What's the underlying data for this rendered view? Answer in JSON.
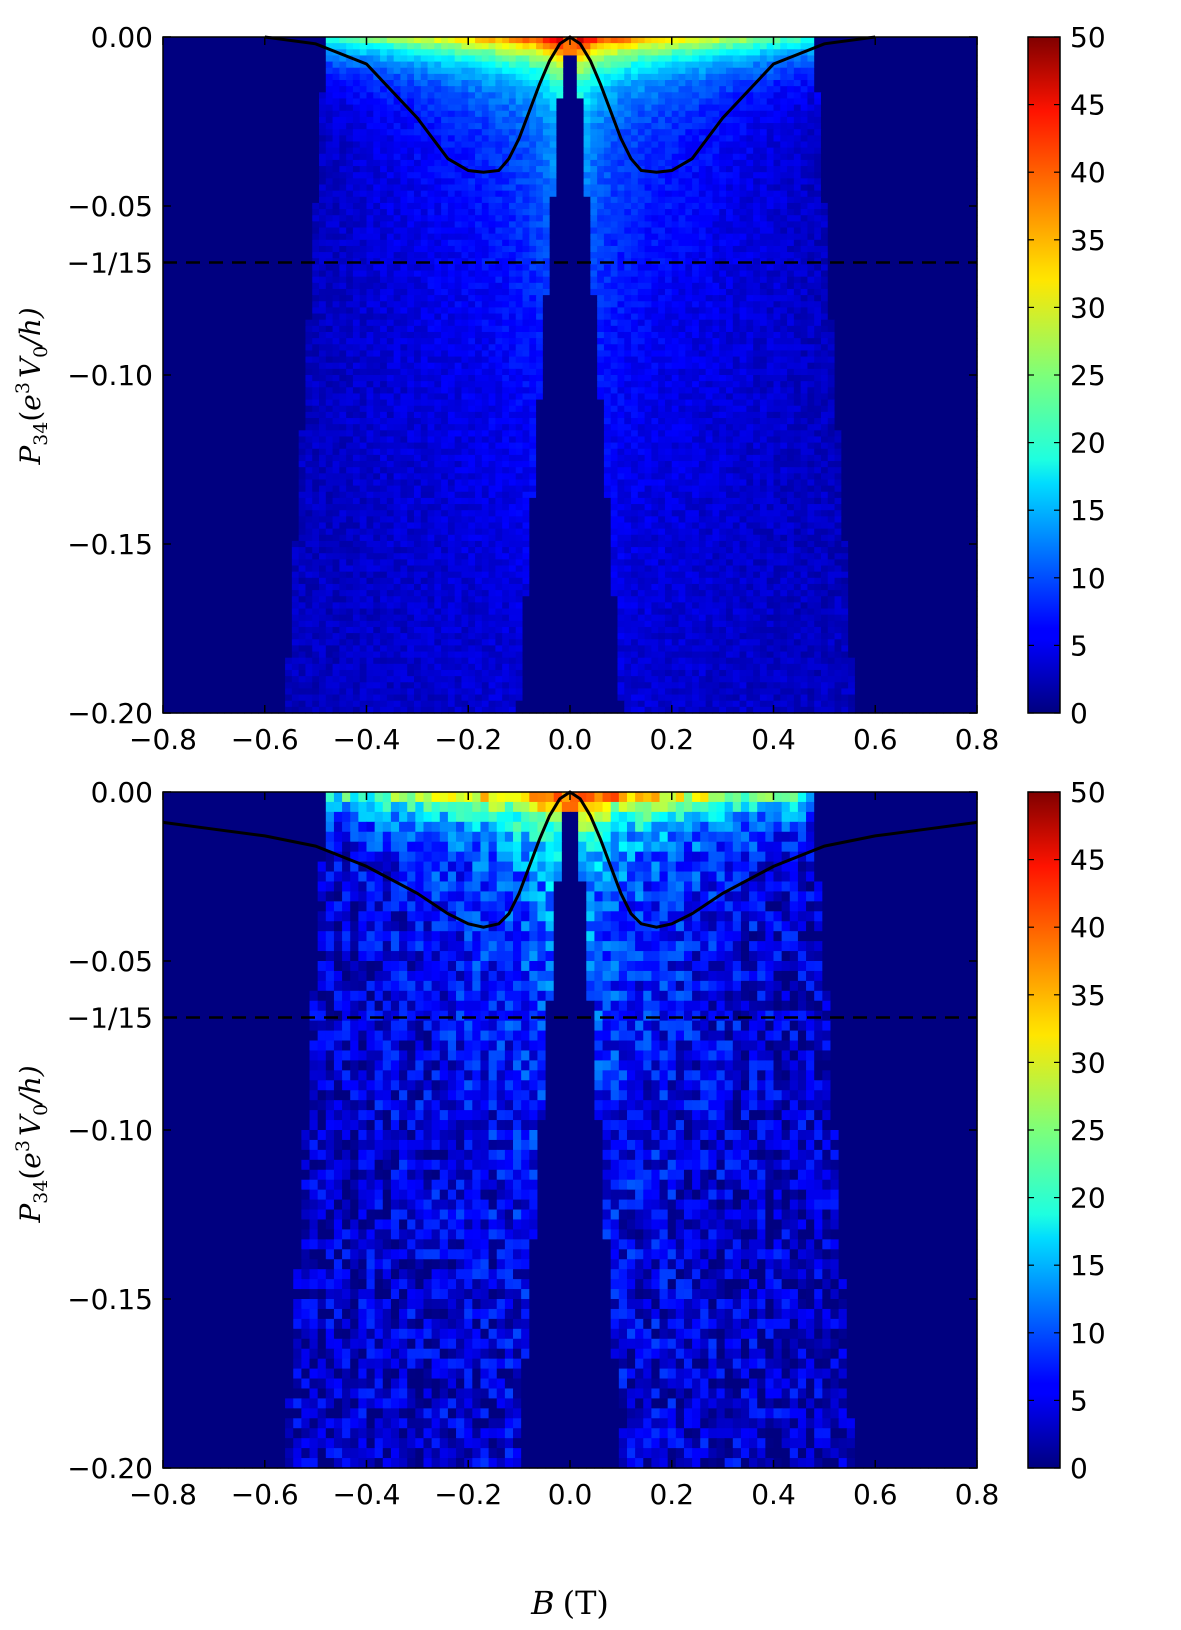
{
  "chart_data": [
    {
      "type": "heatmap",
      "xlabel": "",
      "ylabel_main": "P",
      "ylabel_sub": "34",
      "ylabel_paren_open": "(",
      "ylabel_e": "e",
      "ylabel_e_exp": "3",
      "ylabel_V": "V",
      "ylabel_V_sub": "0",
      "ylabel_tail": "/h)",
      "xlim": [
        -0.8,
        0.8
      ],
      "ylim": [
        -0.2,
        0.0
      ],
      "xticks": [
        -0.8,
        -0.6,
        -0.4,
        -0.2,
        0.0,
        0.2,
        0.4,
        0.6,
        0.8
      ],
      "xtick_labels": [
        "−0.8",
        "−0.6",
        "−0.4",
        "−0.2",
        "0.0",
        "0.2",
        "0.4",
        "0.6",
        "0.8"
      ],
      "yticks": [
        0.0,
        -0.05,
        -0.1,
        -0.15,
        -0.2
      ],
      "ytick_labels": [
        "0.00",
        "−0.05",
        "−0.10",
        "−0.15",
        "−0.20"
      ],
      "extra_ytick": {
        "value": -0.0667,
        "label": "−1/15"
      },
      "dashed_line_y": -0.0667,
      "colorbar": {
        "min": 0,
        "max": 50,
        "ticks": [
          0,
          5,
          10,
          15,
          20,
          25,
          30,
          35,
          40,
          45,
          50
        ],
        "colormap": "jet"
      },
      "resolution": "fine",
      "curve": {
        "x": [
          -0.6,
          -0.5,
          -0.4,
          -0.3,
          -0.24,
          -0.2,
          -0.17,
          -0.14,
          -0.12,
          -0.1,
          -0.08,
          -0.06,
          -0.04,
          -0.02,
          0.0,
          0.02,
          0.04,
          0.06,
          0.08,
          0.1,
          0.12,
          0.14,
          0.17,
          0.2,
          0.24,
          0.3,
          0.4,
          0.5,
          0.6
        ],
        "y": [
          0.0,
          -0.002,
          -0.008,
          -0.024,
          -0.036,
          -0.0395,
          -0.04,
          -0.0395,
          -0.036,
          -0.03,
          -0.022,
          -0.014,
          -0.007,
          -0.002,
          0.0,
          -0.002,
          -0.007,
          -0.014,
          -0.022,
          -0.03,
          -0.036,
          -0.0395,
          -0.04,
          -0.0395,
          -0.036,
          -0.024,
          -0.008,
          -0.002,
          0.0
        ]
      }
    },
    {
      "type": "heatmap",
      "xlabel": "B (T)",
      "xlabel_var": "B",
      "xlabel_unit": "(T)",
      "ylabel_main": "P",
      "ylabel_sub": "34",
      "ylabel_paren_open": "(",
      "ylabel_e": "e",
      "ylabel_e_exp": "3",
      "ylabel_V": "V",
      "ylabel_V_sub": "0",
      "ylabel_tail": "/h)",
      "xlim": [
        -0.8,
        0.8
      ],
      "ylim": [
        -0.2,
        0.0
      ],
      "xticks": [
        -0.8,
        -0.6,
        -0.4,
        -0.2,
        0.0,
        0.2,
        0.4,
        0.6,
        0.8
      ],
      "xtick_labels": [
        "−0.8",
        "−0.6",
        "−0.4",
        "−0.2",
        "0.0",
        "0.2",
        "0.4",
        "0.6",
        "0.8"
      ],
      "yticks": [
        0.0,
        -0.05,
        -0.1,
        -0.15,
        -0.2
      ],
      "ytick_labels": [
        "0.00",
        "−0.05",
        "−0.10",
        "−0.15",
        "−0.20"
      ],
      "extra_ytick": {
        "value": -0.0667,
        "label": "−1/15"
      },
      "dashed_line_y": -0.0667,
      "colorbar": {
        "min": 0,
        "max": 50,
        "ticks": [
          0,
          5,
          10,
          15,
          20,
          25,
          30,
          35,
          40,
          45,
          50
        ],
        "colormap": "jet"
      },
      "resolution": "coarse",
      "curve": {
        "x": [
          -0.8,
          -0.7,
          -0.6,
          -0.5,
          -0.4,
          -0.3,
          -0.24,
          -0.2,
          -0.17,
          -0.14,
          -0.12,
          -0.1,
          -0.08,
          -0.06,
          -0.04,
          -0.02,
          0.0,
          0.02,
          0.04,
          0.06,
          0.08,
          0.1,
          0.12,
          0.14,
          0.17,
          0.2,
          0.24,
          0.3,
          0.4,
          0.5,
          0.6,
          0.7,
          0.8
        ],
        "y": [
          -0.009,
          -0.011,
          -0.013,
          -0.016,
          -0.022,
          -0.03,
          -0.036,
          -0.039,
          -0.04,
          -0.039,
          -0.036,
          -0.03,
          -0.022,
          -0.014,
          -0.007,
          -0.002,
          0.0,
          -0.002,
          -0.007,
          -0.014,
          -0.022,
          -0.03,
          -0.036,
          -0.039,
          -0.04,
          -0.039,
          -0.036,
          -0.03,
          -0.022,
          -0.016,
          -0.013,
          -0.011,
          -0.009
        ]
      }
    }
  ]
}
